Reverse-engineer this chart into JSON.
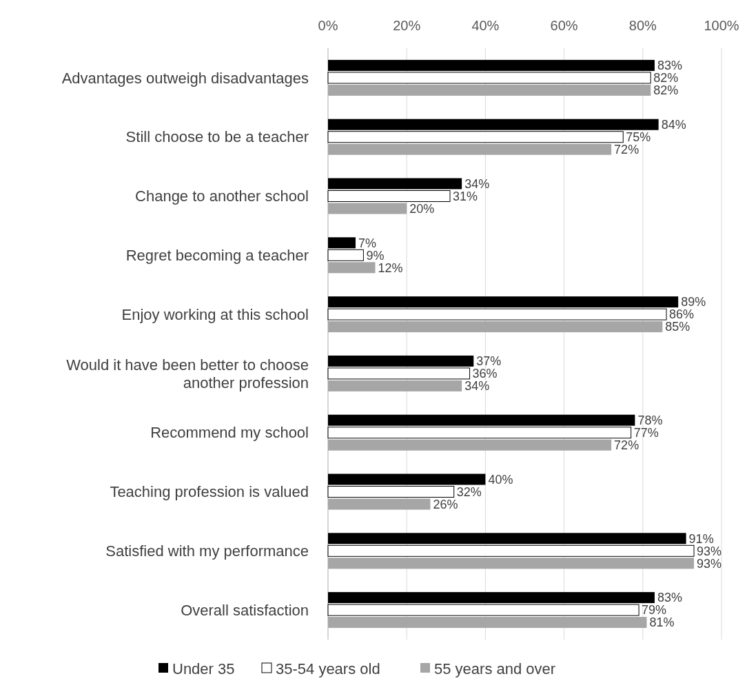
{
  "chart_data": {
    "type": "bar",
    "orientation": "horizontal",
    "categories": [
      "Advantages outweigh disadvantages",
      "Still choose to be a teacher",
      "Change to another school",
      "Regret becoming a teacher",
      "Enjoy working at this school",
      "Would it have been better to choose another profession",
      "Recommend my school",
      "Teaching profession is valued",
      "Satisfied with my performance",
      "Overall satisfaction"
    ],
    "series": [
      {
        "name": "Under 35",
        "color": "#000000",
        "values": [
          83,
          84,
          34,
          7,
          89,
          37,
          78,
          40,
          91,
          83
        ],
        "value_labels": [
          "83%",
          "84%",
          "34%",
          "7%",
          "89%",
          "37%",
          "78%",
          "40%",
          "91%",
          "83%"
        ]
      },
      {
        "name": "35-54 years old",
        "color": "#ffffff",
        "values": [
          82,
          75,
          31,
          9,
          86,
          36,
          77,
          32,
          93,
          79
        ],
        "value_labels": [
          "82%",
          "75%",
          "31%",
          "9%",
          "86%",
          "36%",
          "77%",
          "32%",
          "93%",
          "79%"
        ]
      },
      {
        "name": "55 years and over",
        "color": "#a6a6a6",
        "values": [
          82,
          72,
          20,
          12,
          85,
          34,
          72,
          26,
          93,
          81
        ],
        "value_labels": [
          "82%",
          "72%",
          "20%",
          "12%",
          "85%",
          "34%",
          "72%",
          "26%",
          "93%",
          "81%"
        ]
      }
    ],
    "xlim": [
      0,
      100
    ],
    "xticks": [
      {
        "value": 0,
        "label": "0%"
      },
      {
        "value": 20,
        "label": "20%"
      },
      {
        "value": 40,
        "label": "40%"
      },
      {
        "value": 60,
        "label": "60%"
      },
      {
        "value": 80,
        "label": "80%"
      },
      {
        "value": 100,
        "label": "100%"
      }
    ],
    "grid": "x",
    "legend": "bottom"
  }
}
